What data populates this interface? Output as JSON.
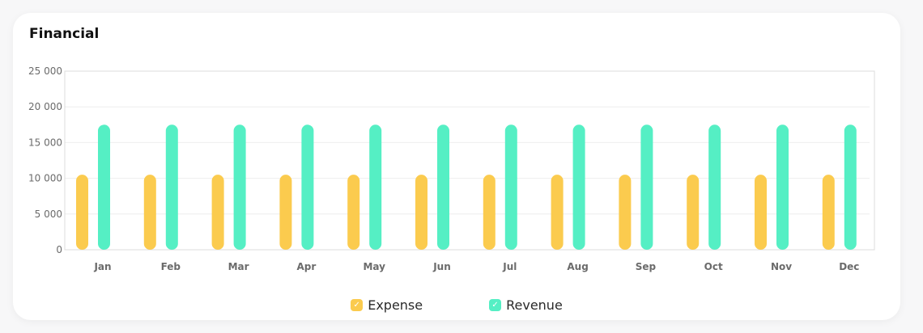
{
  "card": {
    "title": "Financial"
  },
  "colors": {
    "expense": "#FBCB4E",
    "revenue": "#55EFC4"
  },
  "icons": {
    "legend_checkbox": "check-icon"
  },
  "chart_data": {
    "type": "bar",
    "categories": [
      "Jan",
      "Feb",
      "Mar",
      "Apr",
      "May",
      "Jun",
      "Jul",
      "Aug",
      "Sep",
      "Oct",
      "Nov",
      "Dec"
    ],
    "series": [
      {
        "name": "Expense",
        "values": [
          10500,
          10500,
          10500,
          10500,
          10500,
          10500,
          10500,
          10500,
          10500,
          10500,
          10500,
          10500
        ]
      },
      {
        "name": "Revenue",
        "values": [
          17500,
          17500,
          17500,
          17500,
          17500,
          17500,
          17500,
          17500,
          17500,
          17500,
          17500,
          17500
        ]
      }
    ],
    "ylim": [
      0,
      25000
    ],
    "yticks": [
      "0",
      "5 000",
      "10 000",
      "15 000",
      "20 000",
      "25 000"
    ],
    "ytick_values": [
      0,
      5000,
      10000,
      15000,
      20000,
      25000
    ],
    "grid": true,
    "legend": "bottom-center",
    "title": "",
    "xlabel": "",
    "ylabel": ""
  }
}
